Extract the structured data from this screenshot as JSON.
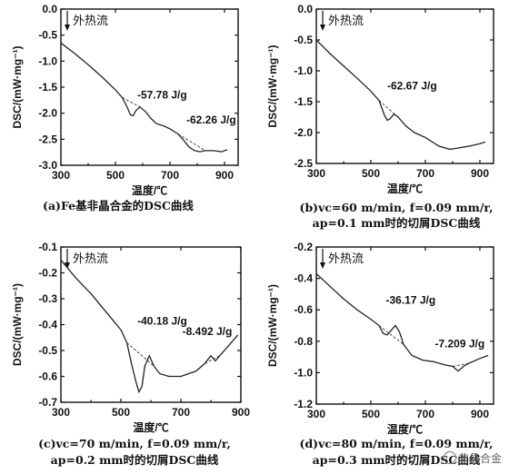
{
  "chart_data": [
    {
      "type": "line",
      "caption": "(a)Fe基非晶合金的DSC曲线",
      "xlabel": "温度/℃",
      "ylabel": "DSC/(mW·mg⁻¹)",
      "xlim": [
        300,
        950
      ],
      "ylim": [
        -3.0,
        0.0
      ],
      "xticks": [
        300,
        500,
        700,
        900
      ],
      "yticks": [
        0.0,
        -0.5,
        -1.0,
        -1.5,
        -2.0,
        -2.5,
        -3.0
      ],
      "ytick_labels": [
        "0.0",
        "-0.5",
        "-1.0",
        "-1.5",
        "-2.0",
        "-2.5",
        "-3.0"
      ],
      "flow_label": "外热流",
      "annotations": [
        {
          "text": "-57.78 J/g",
          "x": 580,
          "y": -1.72
        },
        {
          "text": "-62.26 J/g",
          "x": 760,
          "y": -2.2
        }
      ],
      "series": [
        {
          "x": [
            300,
            350,
            400,
            450,
            500,
            525,
            540,
            555,
            565,
            575,
            590,
            610,
            630,
            650,
            680,
            700,
            730,
            755,
            770,
            790,
            810,
            830,
            860,
            890,
            910
          ],
          "y": [
            -0.65,
            -0.85,
            -1.07,
            -1.3,
            -1.55,
            -1.7,
            -1.85,
            -2.03,
            -2.05,
            -1.95,
            -1.88,
            -1.97,
            -2.1,
            -2.2,
            -2.25,
            -2.3,
            -2.4,
            -2.55,
            -2.65,
            -2.72,
            -2.74,
            -2.72,
            -2.72,
            -2.74,
            -2.7
          ]
        }
      ],
      "baselines": [
        {
          "x": [
            525,
            590
          ],
          "y": [
            -1.7,
            -1.88
          ]
        },
        {
          "x": [
            730,
            830
          ],
          "y": [
            -2.4,
            -2.72
          ]
        }
      ]
    },
    {
      "type": "line",
      "caption": [
        "(b)vc=60 m/min, f=0.09 mm/r,",
        "ap=0.1 mm时的切屑DSC曲线"
      ],
      "xlabel": "温度/℃",
      "ylabel": "DSC/(mW·mg⁻¹)",
      "xlim": [
        300,
        950
      ],
      "ylim": [
        -2.5,
        0.0
      ],
      "xticks": [
        300,
        500,
        700,
        900
      ],
      "yticks": [
        0.0,
        -0.5,
        -1.0,
        -1.5,
        -2.0,
        -2.5
      ],
      "ytick_labels": [
        "0.0",
        "-0.5",
        "-1.0",
        "-1.5",
        "-2.0",
        "-2.5"
      ],
      "flow_label": "外热流",
      "annotations": [
        {
          "text": "-62.67 J/g",
          "x": 560,
          "y": -1.3
        }
      ],
      "series": [
        {
          "x": [
            300,
            350,
            400,
            450,
            500,
            530,
            550,
            560,
            570,
            585,
            600,
            630,
            660,
            700,
            750,
            790,
            820,
            860,
            900,
            920
          ],
          "y": [
            -0.5,
            -0.72,
            -0.92,
            -1.12,
            -1.33,
            -1.48,
            -1.72,
            -1.8,
            -1.78,
            -1.7,
            -1.75,
            -1.9,
            -2.0,
            -2.08,
            -2.22,
            -2.27,
            -2.25,
            -2.22,
            -2.18,
            -2.15
          ]
        }
      ],
      "baselines": [
        {
          "x": [
            530,
            600
          ],
          "y": [
            -1.48,
            -1.75
          ]
        }
      ]
    },
    {
      "type": "line",
      "caption": [
        "(c)vc=70 m/min, f=0.09 mm/r,",
        "ap=0.2 mm时的切屑DSC曲线"
      ],
      "xlabel": "温度/℃",
      "ylabel": "DSC/(mW·mg⁻¹)",
      "xlim": [
        300,
        900
      ],
      "ylim": [
        -0.7,
        -0.1
      ],
      "xticks": [
        300,
        500,
        700,
        900
      ],
      "yticks": [
        -0.1,
        -0.2,
        -0.3,
        -0.4,
        -0.5,
        -0.6,
        -0.7
      ],
      "ytick_labels": [
        "-0.1",
        "-0.2",
        "-0.3",
        "-0.4",
        "-0.5",
        "-0.6",
        "-0.7"
      ],
      "flow_label": "外热流",
      "annotations": [
        {
          "text": "-40.18 J/g",
          "x": 555,
          "y": -0.4
        },
        {
          "text": "-8.492 J/g",
          "x": 705,
          "y": -0.44
        }
      ],
      "series": [
        {
          "x": [
            300,
            350,
            400,
            450,
            500,
            520,
            535,
            550,
            560,
            570,
            580,
            595,
            610,
            630,
            660,
            700,
            750,
            780,
            800,
            815,
            830,
            860,
            890
          ],
          "y": [
            -0.15,
            -0.22,
            -0.28,
            -0.35,
            -0.42,
            -0.47,
            -0.55,
            -0.62,
            -0.66,
            -0.64,
            -0.56,
            -0.52,
            -0.56,
            -0.59,
            -0.6,
            -0.6,
            -0.58,
            -0.55,
            -0.52,
            -0.54,
            -0.52,
            -0.48,
            -0.44
          ]
        }
      ],
      "baselines": [
        {
          "x": [
            520,
            610
          ],
          "y": [
            -0.47,
            -0.56
          ]
        },
        {
          "x": [
            780,
            830
          ],
          "y": [
            -0.55,
            -0.52
          ]
        }
      ]
    },
    {
      "type": "line",
      "caption": [
        "(d)vc=80 m/min, f=0.09 mm/r,",
        "ap=0.3 mm时的切屑DSC曲线"
      ],
      "xlabel": "温度/℃",
      "ylabel": "DSC/(mW·mg⁻¹)",
      "xlim": [
        300,
        950
      ],
      "ylim": [
        -1.2,
        -0.2
      ],
      "xticks": [
        300,
        500,
        700,
        900
      ],
      "yticks": [
        -0.2,
        -0.4,
        -0.6,
        -0.8,
        -1.0,
        -1.2
      ],
      "ytick_labels": [
        "-0.2",
        "-0.4",
        "-0.6",
        "-0.8",
        "-1.0",
        "-1.2"
      ],
      "flow_label": "外热流",
      "annotations": [
        {
          "text": "-36.17 J/g",
          "x": 555,
          "y": -0.56
        },
        {
          "text": "-7.209 J/g",
          "x": 735,
          "y": -0.84
        }
      ],
      "series": [
        {
          "x": [
            300,
            350,
            400,
            450,
            500,
            530,
            545,
            560,
            575,
            590,
            605,
            620,
            650,
            690,
            730,
            770,
            800,
            820,
            840,
            860,
            900,
            930
          ],
          "y": [
            -0.37,
            -0.45,
            -0.53,
            -0.6,
            -0.66,
            -0.7,
            -0.75,
            -0.76,
            -0.73,
            -0.7,
            -0.74,
            -0.82,
            -0.89,
            -0.92,
            -0.93,
            -0.95,
            -0.96,
            -0.99,
            -0.96,
            -0.94,
            -0.91,
            -0.89
          ]
        }
      ],
      "baselines": [
        {
          "x": [
            530,
            620
          ],
          "y": [
            -0.7,
            -0.82
          ]
        },
        {
          "x": [
            800,
            860
          ],
          "y": [
            -0.96,
            -0.94
          ]
        }
      ]
    }
  ],
  "watermark": "非晶合金"
}
